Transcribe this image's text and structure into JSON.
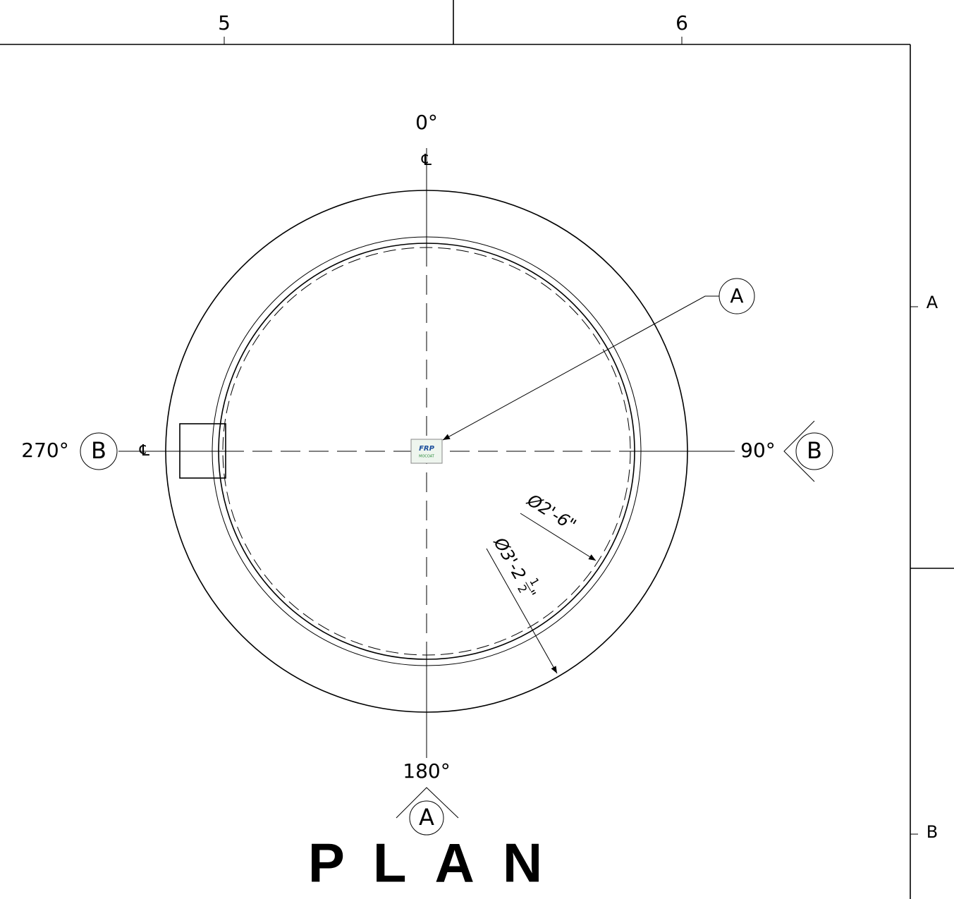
{
  "border": {
    "columns": [
      "5",
      "6"
    ],
    "rows": [
      "A",
      "B"
    ]
  },
  "angles": {
    "top": "0°",
    "right": "90°",
    "bottom": "180°",
    "left": "270°"
  },
  "centerline_marks": {
    "top": "℄",
    "left": "℄"
  },
  "callouts": {
    "detail": "A",
    "left_section": "B",
    "right_section": "B",
    "bottom_section": "A"
  },
  "dimensions": {
    "inner": "Ø2'-6\"",
    "outer_main": "Ø3'-2",
    "outer_fraction_num": "1",
    "outer_fraction_den": "2",
    "outer_inch": "\""
  },
  "logo": {
    "line1": "FRP",
    "line2": "MOCOAT"
  },
  "title": "PLAN"
}
